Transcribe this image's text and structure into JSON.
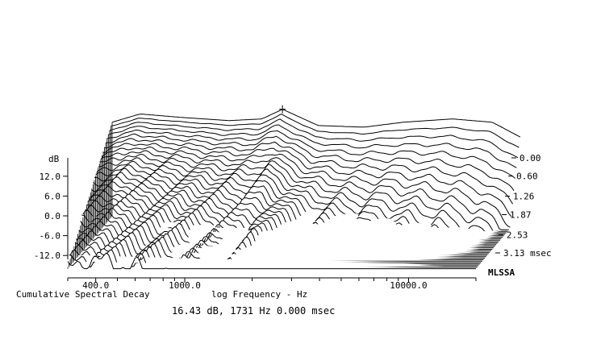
{
  "chart_data": {
    "type": "waterfall",
    "title": "Cumulative Spectral Decay",
    "xlabel": "log Frequency - Hz",
    "ylabel": "dB",
    "zlabel": "msec",
    "x_scale": "log",
    "x_ticks": [
      "400.0",
      "1000.0",
      "10000.0"
    ],
    "x_tick_values": [
      400,
      1000,
      10000
    ],
    "xlim": [
      300,
      20000
    ],
    "y_ticks": [
      "12.0",
      "6.0",
      "0.0",
      "-6.0",
      "-12.0"
    ],
    "y_tick_values": [
      12,
      6,
      0,
      -6,
      -12
    ],
    "ylim": [
      -15,
      16
    ],
    "time_ticks": [
      "0.00",
      "0.60",
      "1.26",
      "1.87",
      "2.53",
      "3.13"
    ],
    "time_tick_values": [
      0.0,
      0.6,
      1.26,
      1.87,
      2.53,
      3.13
    ],
    "time_unit": "msec",
    "grid": false,
    "cursor": {
      "level_db": 16.43,
      "frequency_hz": 1731,
      "time_msec": 0.0
    },
    "cursor_readout": "16.43 dB, 1731 Hz 0.000 msec",
    "brand": "MLSSA",
    "slice_count": 36,
    "initial_response_db": [
      {
        "freq": 300,
        "db": 12.5
      },
      {
        "freq": 400,
        "db": 15.0
      },
      {
        "freq": 600,
        "db": 14.0
      },
      {
        "freq": 1000,
        "db": 13.0
      },
      {
        "freq": 1400,
        "db": 13.5
      },
      {
        "freq": 1731,
        "db": 16.43
      },
      {
        "freq": 2500,
        "db": 11.5
      },
      {
        "freq": 4000,
        "db": 11.0
      },
      {
        "freq": 6000,
        "db": 12.5
      },
      {
        "freq": 10000,
        "db": 13.5
      },
      {
        "freq": 15000,
        "db": 12.5
      },
      {
        "freq": 20000,
        "db": 8.0
      }
    ]
  }
}
